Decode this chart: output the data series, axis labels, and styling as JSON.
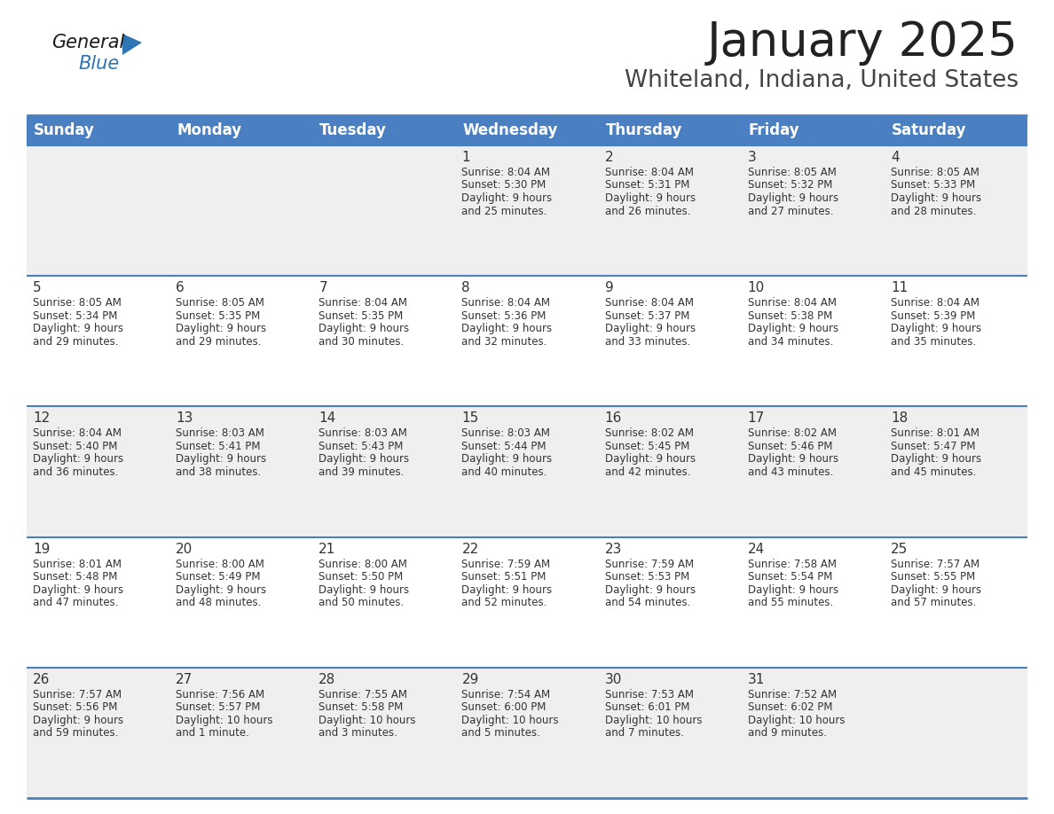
{
  "title": "January 2025",
  "subtitle": "Whiteland, Indiana, United States",
  "header_bg_color": "#4a7fc1",
  "header_text_color": "#FFFFFF",
  "header_font_size": 12,
  "day_names": [
    "Sunday",
    "Monday",
    "Tuesday",
    "Wednesday",
    "Thursday",
    "Friday",
    "Saturday"
  ],
  "title_font_size": 38,
  "subtitle_font_size": 19,
  "title_color": "#222222",
  "subtitle_color": "#444444",
  "cell_bg_even": "#EFEFEF",
  "cell_bg_odd": "#FFFFFF",
  "cell_text_color": "#333333",
  "cell_number_color": "#333333",
  "border_color": "#4a7fc1",
  "logo_general_color": "#1a1a1a",
  "logo_blue_color": "#2E75B6",
  "weeks": [
    [
      {
        "day": null,
        "text": ""
      },
      {
        "day": null,
        "text": ""
      },
      {
        "day": null,
        "text": ""
      },
      {
        "day": 1,
        "text": "Sunrise: 8:04 AM\nSunset: 5:30 PM\nDaylight: 9 hours\nand 25 minutes."
      },
      {
        "day": 2,
        "text": "Sunrise: 8:04 AM\nSunset: 5:31 PM\nDaylight: 9 hours\nand 26 minutes."
      },
      {
        "day": 3,
        "text": "Sunrise: 8:05 AM\nSunset: 5:32 PM\nDaylight: 9 hours\nand 27 minutes."
      },
      {
        "day": 4,
        "text": "Sunrise: 8:05 AM\nSunset: 5:33 PM\nDaylight: 9 hours\nand 28 minutes."
      }
    ],
    [
      {
        "day": 5,
        "text": "Sunrise: 8:05 AM\nSunset: 5:34 PM\nDaylight: 9 hours\nand 29 minutes."
      },
      {
        "day": 6,
        "text": "Sunrise: 8:05 AM\nSunset: 5:35 PM\nDaylight: 9 hours\nand 29 minutes."
      },
      {
        "day": 7,
        "text": "Sunrise: 8:04 AM\nSunset: 5:35 PM\nDaylight: 9 hours\nand 30 minutes."
      },
      {
        "day": 8,
        "text": "Sunrise: 8:04 AM\nSunset: 5:36 PM\nDaylight: 9 hours\nand 32 minutes."
      },
      {
        "day": 9,
        "text": "Sunrise: 8:04 AM\nSunset: 5:37 PM\nDaylight: 9 hours\nand 33 minutes."
      },
      {
        "day": 10,
        "text": "Sunrise: 8:04 AM\nSunset: 5:38 PM\nDaylight: 9 hours\nand 34 minutes."
      },
      {
        "day": 11,
        "text": "Sunrise: 8:04 AM\nSunset: 5:39 PM\nDaylight: 9 hours\nand 35 minutes."
      }
    ],
    [
      {
        "day": 12,
        "text": "Sunrise: 8:04 AM\nSunset: 5:40 PM\nDaylight: 9 hours\nand 36 minutes."
      },
      {
        "day": 13,
        "text": "Sunrise: 8:03 AM\nSunset: 5:41 PM\nDaylight: 9 hours\nand 38 minutes."
      },
      {
        "day": 14,
        "text": "Sunrise: 8:03 AM\nSunset: 5:43 PM\nDaylight: 9 hours\nand 39 minutes."
      },
      {
        "day": 15,
        "text": "Sunrise: 8:03 AM\nSunset: 5:44 PM\nDaylight: 9 hours\nand 40 minutes."
      },
      {
        "day": 16,
        "text": "Sunrise: 8:02 AM\nSunset: 5:45 PM\nDaylight: 9 hours\nand 42 minutes."
      },
      {
        "day": 17,
        "text": "Sunrise: 8:02 AM\nSunset: 5:46 PM\nDaylight: 9 hours\nand 43 minutes."
      },
      {
        "day": 18,
        "text": "Sunrise: 8:01 AM\nSunset: 5:47 PM\nDaylight: 9 hours\nand 45 minutes."
      }
    ],
    [
      {
        "day": 19,
        "text": "Sunrise: 8:01 AM\nSunset: 5:48 PM\nDaylight: 9 hours\nand 47 minutes."
      },
      {
        "day": 20,
        "text": "Sunrise: 8:00 AM\nSunset: 5:49 PM\nDaylight: 9 hours\nand 48 minutes."
      },
      {
        "day": 21,
        "text": "Sunrise: 8:00 AM\nSunset: 5:50 PM\nDaylight: 9 hours\nand 50 minutes."
      },
      {
        "day": 22,
        "text": "Sunrise: 7:59 AM\nSunset: 5:51 PM\nDaylight: 9 hours\nand 52 minutes."
      },
      {
        "day": 23,
        "text": "Sunrise: 7:59 AM\nSunset: 5:53 PM\nDaylight: 9 hours\nand 54 minutes."
      },
      {
        "day": 24,
        "text": "Sunrise: 7:58 AM\nSunset: 5:54 PM\nDaylight: 9 hours\nand 55 minutes."
      },
      {
        "day": 25,
        "text": "Sunrise: 7:57 AM\nSunset: 5:55 PM\nDaylight: 9 hours\nand 57 minutes."
      }
    ],
    [
      {
        "day": 26,
        "text": "Sunrise: 7:57 AM\nSunset: 5:56 PM\nDaylight: 9 hours\nand 59 minutes."
      },
      {
        "day": 27,
        "text": "Sunrise: 7:56 AM\nSunset: 5:57 PM\nDaylight: 10 hours\nand 1 minute."
      },
      {
        "day": 28,
        "text": "Sunrise: 7:55 AM\nSunset: 5:58 PM\nDaylight: 10 hours\nand 3 minutes."
      },
      {
        "day": 29,
        "text": "Sunrise: 7:54 AM\nSunset: 6:00 PM\nDaylight: 10 hours\nand 5 minutes."
      },
      {
        "day": 30,
        "text": "Sunrise: 7:53 AM\nSunset: 6:01 PM\nDaylight: 10 hours\nand 7 minutes."
      },
      {
        "day": 31,
        "text": "Sunrise: 7:52 AM\nSunset: 6:02 PM\nDaylight: 10 hours\nand 9 minutes."
      },
      {
        "day": null,
        "text": ""
      }
    ]
  ]
}
